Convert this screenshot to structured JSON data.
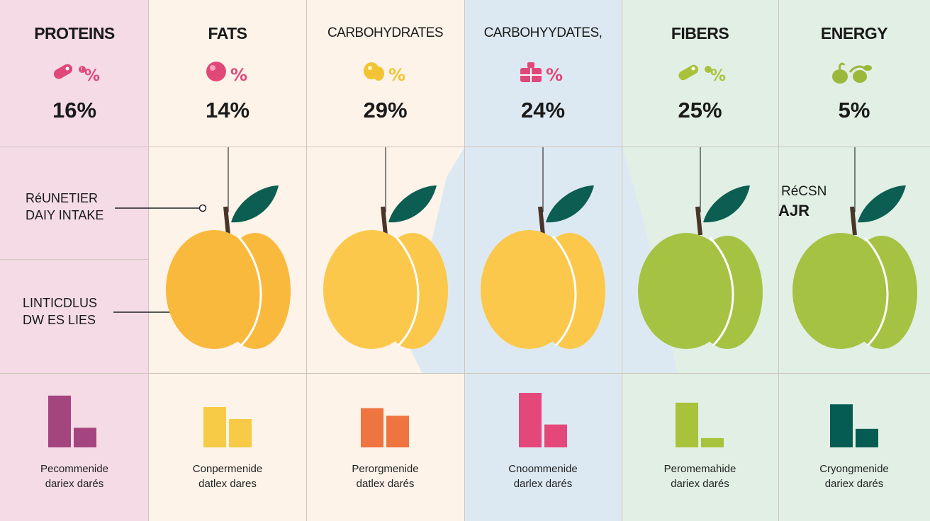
{
  "columns": [
    {
      "title": "PROTEINS",
      "percent": "16%",
      "icon": "protein-capsule-icon",
      "icon_color": "#e0487a",
      "footer_line1": "Pecommenide",
      "footer_line2": "dariex darés"
    },
    {
      "title": "FATS",
      "percent": "14%",
      "icon": "fat-drop-icon",
      "icon_color": "#e0487a",
      "footer_line1": "Conpermenide",
      "footer_line2": "datlex dares"
    },
    {
      "title": "CARBOHYDRATES",
      "percent": "29%",
      "icon": "carb-grain-icon",
      "icon_color": "#f2c433",
      "footer_line1": "Perorgmenide",
      "footer_line2": "datlex darés"
    },
    {
      "title": "CARBOHYYDATES,",
      "percent": "24%",
      "icon": "carb-basket-icon",
      "icon_color": "#e0487a",
      "footer_line1": "Cnoommenide",
      "footer_line2": "darlex darés"
    },
    {
      "title": "FIBERS",
      "percent": "25%",
      "icon": "fiber-capsule-icon",
      "icon_color": "#a9c23b",
      "footer_line1": "Peromemahide",
      "footer_line2": "dariex darés"
    },
    {
      "title": "ENERGY",
      "percent": "5%",
      "icon": "energy-fruit-icon",
      "icon_color": "#9ab83a",
      "footer_line1": "Cryongmenide",
      "footer_line2": "dariex darés"
    }
  ],
  "side_labels": {
    "daily_1": "RéUNETIER",
    "daily_2": "DAIY INTAKE",
    "lint_1": "LINTICDLUS",
    "lint_2": "DW ES LIES"
  },
  "corner": {
    "line1": "RéCSN",
    "line2": "AJR"
  },
  "bars": [
    {
      "color": "#a5457f",
      "values": [
        0.95,
        0.36
      ]
    },
    {
      "color": "#f7cb45",
      "values": [
        0.74,
        0.52
      ]
    },
    {
      "color": "#ee7440",
      "values": [
        0.72,
        0.58
      ]
    },
    {
      "color": "#e4487a",
      "values": [
        1.0,
        0.42
      ]
    },
    {
      "color": "#a9c23b",
      "values": [
        0.82,
        0.17
      ]
    },
    {
      "color": "#045c52",
      "values": [
        0.79,
        0.34
      ]
    }
  ],
  "colors": {
    "pink_bg": "#f4dbe6",
    "cream_bg": "#fdf3e8",
    "blue_bg": "#dde9f2",
    "green_bg": "#e1efe5",
    "apricot_orange": "#f9b93d",
    "apricot_yellow": "#fcc84b",
    "plum_green": "#a6c243",
    "leaf": "#0b5e51"
  }
}
